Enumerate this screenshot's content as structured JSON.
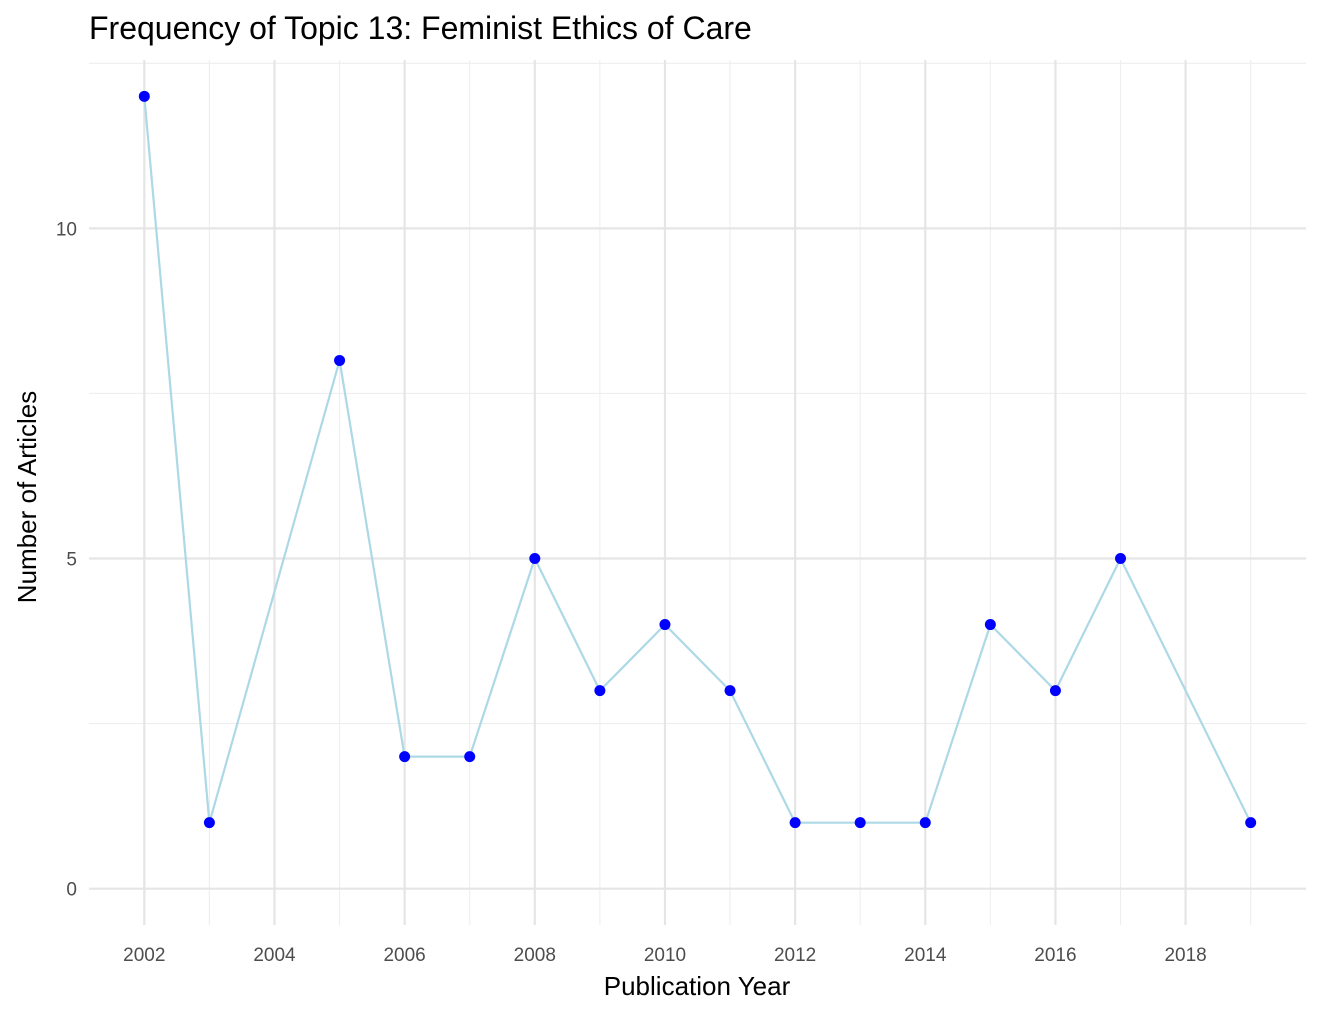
{
  "chart_data": {
    "type": "line",
    "title": "Frequency of Topic 13: Feminist Ethics of Care",
    "xlabel": "Publication Year",
    "ylabel": "Number of Articles",
    "x": [
      2002,
      2003,
      2005,
      2006,
      2007,
      2008,
      2009,
      2010,
      2011,
      2012,
      2013,
      2014,
      2015,
      2016,
      2017,
      2019
    ],
    "series": [
      {
        "values": [
          12,
          1,
          8,
          2,
          2,
          5,
          3,
          4,
          3,
          1,
          1,
          1,
          4,
          3,
          5,
          1
        ]
      }
    ],
    "xlim": [
      2001.15,
      2019.85
    ],
    "ylim": [
      -0.55,
      12.55
    ],
    "x_ticks": [
      "2002",
      "2004",
      "2006",
      "2008",
      "2010",
      "2012",
      "2014",
      "2016",
      "2018"
    ],
    "y_ticks": [
      "0",
      "5",
      "10"
    ],
    "grid": true,
    "legend": "none",
    "colors": {
      "line": "#add8e6",
      "point": "#0000ff",
      "grid_major": "#e5e5e5",
      "grid_minor": "#eeeeee"
    }
  }
}
